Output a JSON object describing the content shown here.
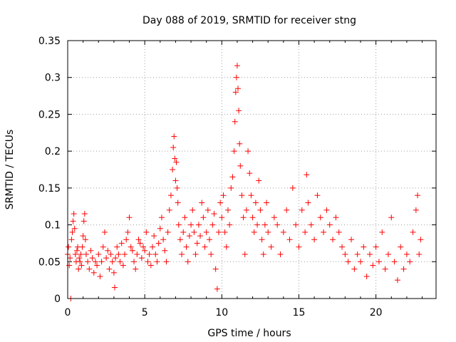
{
  "chart_data": {
    "type": "scatter",
    "title": "Day 088 of 2019, SRMTID for receiver stng",
    "xlabel": "GPS time / hours",
    "ylabel": "SRMTID / TECUs",
    "xlim": [
      0,
      23.9
    ],
    "ylim": [
      0,
      0.35
    ],
    "xticks": [
      0,
      5,
      10,
      15,
      20
    ],
    "xtick_labels": [
      "0",
      "5",
      "10",
      "15",
      "20"
    ],
    "yticks": [
      0,
      0.05,
      0.1,
      0.15,
      0.2,
      0.25,
      0.3,
      0.35
    ],
    "ytick_labels": [
      "0",
      "0.05",
      "0.1",
      "0.15",
      "0.2",
      "0.25",
      "0.3",
      "0.35"
    ],
    "grid": true,
    "marker": "+",
    "color": "#ff0000",
    "series": [
      {
        "name": "SRMTID",
        "points": [
          [
            0.0,
            0.06
          ],
          [
            0.05,
            0.07
          ],
          [
            0.1,
            0.045
          ],
          [
            0.15,
            0.055
          ],
          [
            0.2,
            0.0
          ],
          [
            0.25,
            0.08
          ],
          [
            0.3,
            0.09
          ],
          [
            0.35,
            0.105
          ],
          [
            0.4,
            0.115
          ],
          [
            0.45,
            0.095
          ],
          [
            0.5,
            0.06
          ],
          [
            0.55,
            0.05
          ],
          [
            0.6,
            0.065
          ],
          [
            0.65,
            0.07
          ],
          [
            0.7,
            0.04
          ],
          [
            0.75,
            0.055
          ],
          [
            0.8,
            0.05
          ],
          [
            0.85,
            0.06
          ],
          [
            0.9,
            0.045
          ],
          [
            0.95,
            0.07
          ],
          [
            1.0,
            0.085
          ],
          [
            1.05,
            0.105
          ],
          [
            1.1,
            0.115
          ],
          [
            1.15,
            0.08
          ],
          [
            1.2,
            0.06
          ],
          [
            1.3,
            0.05
          ],
          [
            1.4,
            0.04
          ],
          [
            1.5,
            0.065
          ],
          [
            1.6,
            0.055
          ],
          [
            1.7,
            0.035
          ],
          [
            1.8,
            0.05
          ],
          [
            1.9,
            0.045
          ],
          [
            2.0,
            0.06
          ],
          [
            2.1,
            0.03
          ],
          [
            2.2,
            0.05
          ],
          [
            2.3,
            0.07
          ],
          [
            2.4,
            0.09
          ],
          [
            2.5,
            0.055
          ],
          [
            2.6,
            0.065
          ],
          [
            2.7,
            0.04
          ],
          [
            2.8,
            0.06
          ],
          [
            2.9,
            0.05
          ],
          [
            3.0,
            0.035
          ],
          [
            3.05,
            0.015
          ],
          [
            3.1,
            0.055
          ],
          [
            3.2,
            0.07
          ],
          [
            3.3,
            0.06
          ],
          [
            3.4,
            0.05
          ],
          [
            3.5,
            0.075
          ],
          [
            3.6,
            0.045
          ],
          [
            3.7,
            0.06
          ],
          [
            3.8,
            0.08
          ],
          [
            3.9,
            0.09
          ],
          [
            4.0,
            0.11
          ],
          [
            4.1,
            0.07
          ],
          [
            4.2,
            0.065
          ],
          [
            4.3,
            0.05
          ],
          [
            4.4,
            0.04
          ],
          [
            4.5,
            0.06
          ],
          [
            4.6,
            0.08
          ],
          [
            4.7,
            0.075
          ],
          [
            4.8,
            0.055
          ],
          [
            4.9,
            0.07
          ],
          [
            5.0,
            0.065
          ],
          [
            5.1,
            0.09
          ],
          [
            5.2,
            0.05
          ],
          [
            5.3,
            0.06
          ],
          [
            5.4,
            0.045
          ],
          [
            5.5,
            0.07
          ],
          [
            5.6,
            0.085
          ],
          [
            5.7,
            0.06
          ],
          [
            5.8,
            0.05
          ],
          [
            5.9,
            0.075
          ],
          [
            6.0,
            0.095
          ],
          [
            6.1,
            0.11
          ],
          [
            6.2,
            0.08
          ],
          [
            6.3,
            0.065
          ],
          [
            6.4,
            0.05
          ],
          [
            6.5,
            0.09
          ],
          [
            6.6,
            0.12
          ],
          [
            6.7,
            0.14
          ],
          [
            6.8,
            0.175
          ],
          [
            6.85,
            0.205
          ],
          [
            6.9,
            0.22
          ],
          [
            6.95,
            0.19
          ],
          [
            7.0,
            0.16
          ],
          [
            7.05,
            0.185
          ],
          [
            7.1,
            0.15
          ],
          [
            7.15,
            0.13
          ],
          [
            7.2,
            0.1
          ],
          [
            7.3,
            0.08
          ],
          [
            7.4,
            0.06
          ],
          [
            7.5,
            0.09
          ],
          [
            7.6,
            0.11
          ],
          [
            7.7,
            0.07
          ],
          [
            7.8,
            0.05
          ],
          [
            7.9,
            0.085
          ],
          [
            8.0,
            0.1
          ],
          [
            8.1,
            0.12
          ],
          [
            8.2,
            0.09
          ],
          [
            8.3,
            0.06
          ],
          [
            8.4,
            0.075
          ],
          [
            8.5,
            0.1
          ],
          [
            8.6,
            0.085
          ],
          [
            8.7,
            0.13
          ],
          [
            8.8,
            0.11
          ],
          [
            8.9,
            0.07
          ],
          [
            9.0,
            0.09
          ],
          [
            9.1,
            0.12
          ],
          [
            9.2,
            0.08
          ],
          [
            9.3,
            0.06
          ],
          [
            9.4,
            0.1
          ],
          [
            9.5,
            0.115
          ],
          [
            9.6,
            0.04
          ],
          [
            9.7,
            0.013
          ],
          [
            9.8,
            0.09
          ],
          [
            9.9,
            0.13
          ],
          [
            10.0,
            0.11
          ],
          [
            10.1,
            0.14
          ],
          [
            10.2,
            0.09
          ],
          [
            10.3,
            0.07
          ],
          [
            10.4,
            0.12
          ],
          [
            10.5,
            0.1
          ],
          [
            10.6,
            0.15
          ],
          [
            10.7,
            0.165
          ],
          [
            10.8,
            0.2
          ],
          [
            10.85,
            0.24
          ],
          [
            10.9,
            0.28
          ],
          [
            10.95,
            0.3
          ],
          [
            11.0,
            0.316
          ],
          [
            11.05,
            0.285
          ],
          [
            11.1,
            0.255
          ],
          [
            11.15,
            0.21
          ],
          [
            11.2,
            0.18
          ],
          [
            11.3,
            0.14
          ],
          [
            11.4,
            0.11
          ],
          [
            11.5,
            0.06
          ],
          [
            11.6,
            0.12
          ],
          [
            11.7,
            0.2
          ],
          [
            11.8,
            0.17
          ],
          [
            11.9,
            0.14
          ],
          [
            12.0,
            0.11
          ],
          [
            12.1,
            0.09
          ],
          [
            12.2,
            0.13
          ],
          [
            12.3,
            0.1
          ],
          [
            12.4,
            0.16
          ],
          [
            12.5,
            0.12
          ],
          [
            12.6,
            0.08
          ],
          [
            12.7,
            0.06
          ],
          [
            12.8,
            0.1
          ],
          [
            12.9,
            0.13
          ],
          [
            13.0,
            0.09
          ],
          [
            13.2,
            0.07
          ],
          [
            13.4,
            0.11
          ],
          [
            13.6,
            0.1
          ],
          [
            13.8,
            0.06
          ],
          [
            14.0,
            0.09
          ],
          [
            14.2,
            0.12
          ],
          [
            14.4,
            0.08
          ],
          [
            14.6,
            0.15
          ],
          [
            14.8,
            0.1
          ],
          [
            15.0,
            0.07
          ],
          [
            15.2,
            0.12
          ],
          [
            15.4,
            0.09
          ],
          [
            15.5,
            0.168
          ],
          [
            15.6,
            0.13
          ],
          [
            15.8,
            0.1
          ],
          [
            16.0,
            0.08
          ],
          [
            16.2,
            0.14
          ],
          [
            16.4,
            0.11
          ],
          [
            16.6,
            0.09
          ],
          [
            16.8,
            0.12
          ],
          [
            17.0,
            0.1
          ],
          [
            17.2,
            0.08
          ],
          [
            17.4,
            0.11
          ],
          [
            17.6,
            0.09
          ],
          [
            17.8,
            0.07
          ],
          [
            18.0,
            0.06
          ],
          [
            18.2,
            0.05
          ],
          [
            18.4,
            0.08
          ],
          [
            18.6,
            0.04
          ],
          [
            18.8,
            0.06
          ],
          [
            19.0,
            0.05
          ],
          [
            19.2,
            0.07
          ],
          [
            19.4,
            0.03
          ],
          [
            19.6,
            0.06
          ],
          [
            19.8,
            0.045
          ],
          [
            20.0,
            0.07
          ],
          [
            20.2,
            0.05
          ],
          [
            20.4,
            0.09
          ],
          [
            20.6,
            0.04
          ],
          [
            20.8,
            0.06
          ],
          [
            21.0,
            0.11
          ],
          [
            21.2,
            0.05
          ],
          [
            21.4,
            0.025
          ],
          [
            21.6,
            0.07
          ],
          [
            21.8,
            0.04
          ],
          [
            22.0,
            0.06
          ],
          [
            22.2,
            0.05
          ],
          [
            22.4,
            0.09
          ],
          [
            22.6,
            0.12
          ],
          [
            22.7,
            0.14
          ],
          [
            22.8,
            0.06
          ],
          [
            22.9,
            0.08
          ]
        ]
      }
    ]
  }
}
